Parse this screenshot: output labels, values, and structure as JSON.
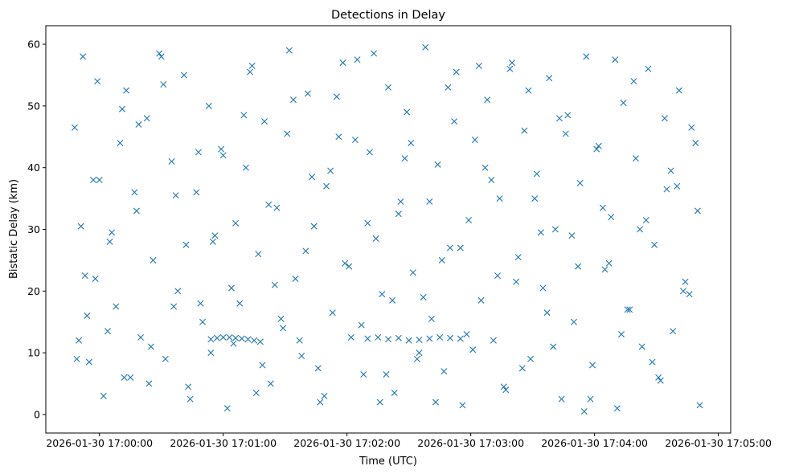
{
  "chart_data": {
    "type": "scatter",
    "title": "Detections in Delay",
    "xlabel": "Time (UTC)",
    "ylabel": "Bistatic Delay (km)",
    "x_is_time": true,
    "xlim": [
      "2026-01-30 16:59:34",
      "2026-01-30 17:05:06"
    ],
    "ylim": [
      -3,
      63
    ],
    "x_ticks": [
      {
        "value": "2026-01-30 17:00:00",
        "label": "2026-01-30 17:00:00"
      },
      {
        "value": "2026-01-30 17:01:00",
        "label": "2026-01-30 17:01:00"
      },
      {
        "value": "2026-01-30 17:02:00",
        "label": "2026-01-30 17:02:00"
      },
      {
        "value": "2026-01-30 17:03:00",
        "label": "2026-01-30 17:03:00"
      },
      {
        "value": "2026-01-30 17:04:00",
        "label": "2026-01-30 17:04:00"
      },
      {
        "value": "2026-01-30 17:05:00",
        "label": "2026-01-30 17:05:00"
      }
    ],
    "y_ticks": [
      {
        "value": 0,
        "label": "0"
      },
      {
        "value": 10,
        "label": "10"
      },
      {
        "value": 20,
        "label": "20"
      },
      {
        "value": 30,
        "label": "30"
      },
      {
        "value": 40,
        "label": "40"
      },
      {
        "value": 50,
        "label": "50"
      },
      {
        "value": 60,
        "label": "60"
      }
    ],
    "marker": "x",
    "grid": false,
    "legend": false,
    "colors": {
      "marker": "#1f77b4",
      "axes": "#000000",
      "background": "#ffffff"
    },
    "series": [
      {
        "x": [
          "2026-01-30 16:59:48",
          "2026-01-30 16:59:50",
          "2026-01-30 16:59:52",
          "2026-01-30 16:59:53",
          "2026-01-30 16:59:55",
          "2026-01-30 16:59:57",
          "2026-01-30 16:59:59",
          "2026-01-30 17:00:02",
          "2026-01-30 17:00:05",
          "2026-01-30 17:00:08",
          "2026-01-30 17:00:10",
          "2026-01-30 17:00:13",
          "2026-01-30 17:00:15",
          "2026-01-30 17:00:18",
          "2026-01-30 17:00:20",
          "2026-01-30 17:00:23",
          "2026-01-30 17:00:26",
          "2026-01-30 17:00:29",
          "2026-01-30 17:00:32",
          "2026-01-30 17:00:35",
          "2026-01-30 17:00:38",
          "2026-01-30 17:00:41",
          "2026-01-30 17:00:44",
          "2026-01-30 17:00:47",
          "2026-01-30 17:00:50",
          "2026-01-30 17:00:53",
          "2026-01-30 17:00:56",
          "2026-01-30 17:00:59",
          "2026-01-30 17:01:02",
          "2026-01-30 17:01:05",
          "2026-01-30 17:01:08",
          "2026-01-30 17:01:11",
          "2026-01-30 17:01:14",
          "2026-01-30 17:01:17",
          "2026-01-30 17:01:20",
          "2026-01-30 17:01:23",
          "2026-01-30 17:01:26",
          "2026-01-30 17:01:29",
          "2026-01-30 17:01:32",
          "2026-01-30 17:01:35",
          "2026-01-30 17:01:38",
          "2026-01-30 17:01:41",
          "2026-01-30 17:01:44",
          "2026-01-30 17:01:47",
          "2026-01-30 17:01:50",
          "2026-01-30 17:01:53",
          "2026-01-30 17:01:56",
          "2026-01-30 17:01:59",
          "2026-01-30 17:02:02",
          "2026-01-30 17:02:05",
          "2026-01-30 17:02:08",
          "2026-01-30 17:02:11",
          "2026-01-30 17:02:14",
          "2026-01-30 17:02:17",
          "2026-01-30 17:02:20",
          "2026-01-30 17:02:23",
          "2026-01-30 17:02:26",
          "2026-01-30 17:02:29",
          "2026-01-30 17:02:32",
          "2026-01-30 17:02:35",
          "2026-01-30 17:02:38",
          "2026-01-30 17:02:41",
          "2026-01-30 17:02:44",
          "2026-01-30 17:02:47",
          "2026-01-30 17:02:50",
          "2026-01-30 17:02:53",
          "2026-01-30 17:02:56",
          "2026-01-30 17:02:59",
          "2026-01-30 17:03:02",
          "2026-01-30 17:03:05",
          "2026-01-30 17:03:08",
          "2026-01-30 17:03:11",
          "2026-01-30 17:03:14",
          "2026-01-30 17:03:17",
          "2026-01-30 17:03:20",
          "2026-01-30 17:03:23",
          "2026-01-30 17:03:26",
          "2026-01-30 17:03:29",
          "2026-01-30 17:03:32",
          "2026-01-30 17:03:35",
          "2026-01-30 17:03:38",
          "2026-01-30 17:03:41",
          "2026-01-30 17:03:44",
          "2026-01-30 17:03:47",
          "2026-01-30 17:03:50",
          "2026-01-30 17:03:53",
          "2026-01-30 17:03:56",
          "2026-01-30 17:03:59",
          "2026-01-30 17:04:02",
          "2026-01-30 17:04:05",
          "2026-01-30 17:04:08",
          "2026-01-30 17:04:11",
          "2026-01-30 17:04:14",
          "2026-01-30 17:04:17",
          "2026-01-30 17:04:20",
          "2026-01-30 17:04:23",
          "2026-01-30 17:04:26",
          "2026-01-30 17:04:29",
          "2026-01-30 17:04:32",
          "2026-01-30 17:04:35",
          "2026-01-30 17:04:38",
          "2026-01-30 17:04:41",
          "2026-01-30 17:04:44",
          "2026-01-30 17:04:47",
          "2026-01-30 17:04:50",
          "2026-01-30 16:59:49",
          "2026-01-30 16:59:54",
          "2026-01-30 17:00:00",
          "2026-01-30 17:00:06",
          "2026-01-30 17:00:12",
          "2026-01-30 17:00:19",
          "2026-01-30 17:00:25",
          "2026-01-30 17:00:31",
          "2026-01-30 17:00:37",
          "2026-01-30 17:00:43",
          "2026-01-30 17:00:49",
          "2026-01-30 17:00:55",
          "2026-01-30 17:01:00",
          "2026-01-30 17:01:06",
          "2026-01-30 17:01:13",
          "2026-01-30 17:01:19",
          "2026-01-30 17:01:25",
          "2026-01-30 17:01:31",
          "2026-01-30 17:01:37",
          "2026-01-30 17:01:43",
          "2026-01-30 17:01:49",
          "2026-01-30 17:01:55",
          "2026-01-30 17:02:01",
          "2026-01-30 17:02:07",
          "2026-01-30 17:02:13",
          "2026-01-30 17:02:19",
          "2026-01-30 17:02:25",
          "2026-01-30 17:02:31",
          "2026-01-30 17:02:37",
          "2026-01-30 17:02:43",
          "2026-01-30 17:02:49",
          "2026-01-30 17:02:55",
          "2026-01-30 17:03:01",
          "2026-01-30 17:03:07",
          "2026-01-30 17:03:13",
          "2026-01-30 17:03:19",
          "2026-01-30 17:03:25",
          "2026-01-30 17:03:31",
          "2026-01-30 17:03:37",
          "2026-01-30 17:03:43",
          "2026-01-30 17:03:49",
          "2026-01-30 17:03:55",
          "2026-01-30 17:04:01",
          "2026-01-30 17:04:07",
          "2026-01-30 17:04:13",
          "2026-01-30 17:04:19",
          "2026-01-30 17:04:25",
          "2026-01-30 17:04:31",
          "2026-01-30 17:04:37",
          "2026-01-30 17:04:43",
          "2026-01-30 17:04:49",
          "2026-01-30 16:59:51",
          "2026-01-30 16:59:58",
          "2026-01-30 17:00:04",
          "2026-01-30 17:00:11",
          "2026-01-30 17:00:17",
          "2026-01-30 17:00:24",
          "2026-01-30 17:00:30",
          "2026-01-30 17:00:36",
          "2026-01-30 17:00:42",
          "2026-01-30 17:00:48",
          "2026-01-30 17:00:54",
          "2026-01-30 17:01:04",
          "2026-01-30 17:01:10",
          "2026-01-30 17:01:16",
          "2026-01-30 17:01:22",
          "2026-01-30 17:01:28",
          "2026-01-30 17:01:34",
          "2026-01-30 17:01:40",
          "2026-01-30 17:01:46",
          "2026-01-30 17:01:52",
          "2026-01-30 17:01:58",
          "2026-01-30 17:02:04",
          "2026-01-30 17:02:10",
          "2026-01-30 17:02:16",
          "2026-01-30 17:02:22",
          "2026-01-30 17:02:28",
          "2026-01-30 17:02:34",
          "2026-01-30 17:02:40",
          "2026-01-30 17:02:46",
          "2026-01-30 17:02:52",
          "2026-01-30 17:02:58",
          "2026-01-30 17:03:04",
          "2026-01-30 17:03:10",
          "2026-01-30 17:03:16",
          "2026-01-30 17:03:22",
          "2026-01-30 17:03:28",
          "2026-01-30 17:03:34",
          "2026-01-30 17:03:40",
          "2026-01-30 17:03:46",
          "2026-01-30 17:03:52",
          "2026-01-30 17:03:58",
          "2026-01-30 17:04:04",
          "2026-01-30 17:04:10",
          "2026-01-30 17:04:16",
          "2026-01-30 17:04:22",
          "2026-01-30 17:04:28",
          "2026-01-30 17:04:34",
          "2026-01-30 17:04:40",
          "2026-01-30 17:04:46",
          "2026-01-30 17:04:51",
          "2026-01-30 17:00:54",
          "2026-01-30 17:00:57",
          "2026-01-30 17:01:00",
          "2026-01-30 17:01:03",
          "2026-01-30 17:01:06",
          "2026-01-30 17:01:09",
          "2026-01-30 17:01:12",
          "2026-01-30 17:01:15",
          "2026-01-30 17:01:18",
          "2026-01-30 17:02:10",
          "2026-01-30 17:02:15",
          "2026-01-30 17:02:20",
          "2026-01-30 17:02:25",
          "2026-01-30 17:02:30",
          "2026-01-30 17:02:35",
          "2026-01-30 17:02:40",
          "2026-01-30 17:02:45",
          "2026-01-30 17:02:50",
          "2026-01-30 17:02:55"
        ],
        "y": [
          46.5,
          12.0,
          58.0,
          22.5,
          8.5,
          38.0,
          54.0,
          3.0,
          28.0,
          17.5,
          44.0,
          52.5,
          6.0,
          33.0,
          12.5,
          48.0,
          25.0,
          58.5,
          9.0,
          41.0,
          20.0,
          55.0,
          2.5,
          36.0,
          15.0,
          50.0,
          29.0,
          43.0,
          1.0,
          11.5,
          18.0,
          40.0,
          56.5,
          26.0,
          47.5,
          5.0,
          33.5,
          14.0,
          59.0,
          22.0,
          9.5,
          52.0,
          30.5,
          2.0,
          37.0,
          16.5,
          45.0,
          24.5,
          12.5,
          57.5,
          6.5,
          42.5,
          28.5,
          19.5,
          53.0,
          3.5,
          34.5,
          49.0,
          23.0,
          10.0,
          59.5,
          15.5,
          40.5,
          7.0,
          27.0,
          55.5,
          1.5,
          31.5,
          44.5,
          18.5,
          51.0,
          12.0,
          35.0,
          4.0,
          57.0,
          25.5,
          46.0,
          9.0,
          39.0,
          20.5,
          54.5,
          30.0,
          2.5,
          48.5,
          15.0,
          37.5,
          58.0,
          8.0,
          43.5,
          23.5,
          32.0,
          1.0,
          50.5,
          17.0,
          41.5,
          11.0,
          56.0,
          27.5,
          5.5,
          36.5,
          13.5,
          52.5,
          21.5,
          46.5,
          33.0,
          9.0,
          16.0,
          38.0,
          29.5,
          6.0,
          47.0,
          11.0,
          53.5,
          35.5,
          4.5,
          18.0,
          28.0,
          42.0,
          31.0,
          55.5,
          8.0,
          21.0,
          45.5,
          12.0,
          38.5,
          3.0,
          51.5,
          24.0,
          14.5,
          58.5,
          6.5,
          32.5,
          44.0,
          19.0,
          2.0,
          53.0,
          27.0,
          10.5,
          40.0,
          22.5,
          56.0,
          7.5,
          35.0,
          16.5,
          48.0,
          29.0,
          0.5,
          43.0,
          24.5,
          13.0,
          54.0,
          31.5,
          6.0,
          39.5,
          20.0,
          44.0,
          30.5,
          22.0,
          13.5,
          49.5,
          36.0,
          5.0,
          58.0,
          17.5,
          27.5,
          42.5,
          10.0,
          20.5,
          48.5,
          3.5,
          34.0,
          15.5,
          51.0,
          26.5,
          7.5,
          39.5,
          57.0,
          44.5,
          31.0,
          2.0,
          18.5,
          41.5,
          9.0,
          34.5,
          25.0,
          47.5,
          13.0,
          56.5,
          38.0,
          4.5,
          21.5,
          52.5,
          29.5,
          11.0,
          45.5,
          24.0,
          2.5,
          33.5,
          57.5,
          17.0,
          30.0,
          8.5,
          48.0,
          37.0,
          19.5,
          1.5,
          12.2,
          12.4,
          12.5,
          12.5,
          12.4,
          12.3,
          12.2,
          12.0,
          11.8,
          12.3,
          12.5,
          12.2,
          12.4,
          12.0,
          12.1,
          12.3,
          12.5,
          12.4,
          12.3
        ]
      }
    ]
  }
}
